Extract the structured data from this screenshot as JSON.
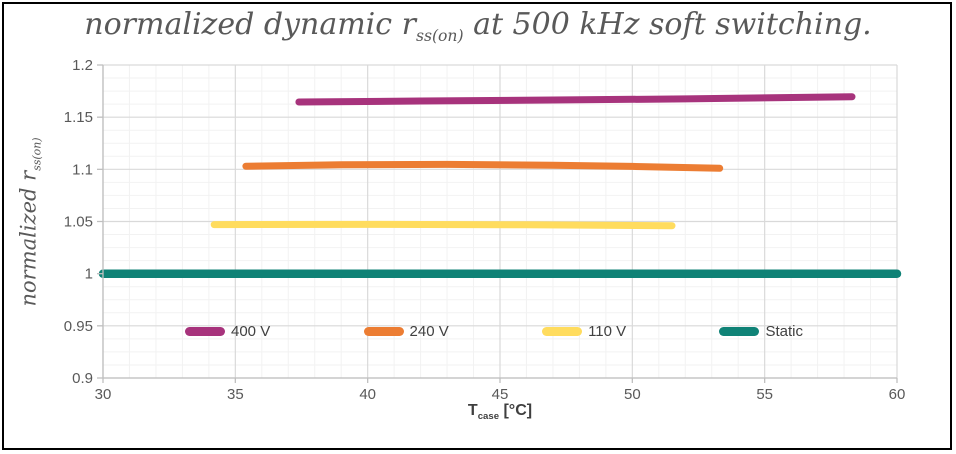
{
  "chart": {
    "title": {
      "pre": "normalized dynamic r",
      "sub": "ss(on)",
      "post": " at 500 kHz soft switching."
    },
    "x_axis_label": {
      "pre": "T",
      "sub": "case",
      "post": " [°C]"
    },
    "y_axis_label": {
      "pre": "normalized r",
      "sub": "ss(on)"
    }
  },
  "chart_data": {
    "type": "line",
    "title": "normalized dynamic r_ss(on) at 500 kHz soft switching.",
    "xlabel": "T_case [°C]",
    "ylabel": "normalized r_ss(on)",
    "xlim": [
      30,
      60
    ],
    "ylim": [
      0.9,
      1.2
    ],
    "x_ticks": [
      30,
      35,
      40,
      45,
      50,
      55,
      60
    ],
    "y_ticks": [
      0.9,
      0.95,
      1,
      1.05,
      1.1,
      1.15,
      1.2
    ],
    "x_minor_step": 1,
    "y_minor_step": 0.0125,
    "grid": true,
    "legend_position": "inside-bottom",
    "colors": {
      "grid_major": "#D9D9D9",
      "grid_minor": "#F2F2F2",
      "axis": "#BFBFBF",
      "tick_labels": "#595959"
    },
    "series": [
      {
        "name": "400 V",
        "color": "#A7337C",
        "line_width": 7,
        "points": [
          [
            37.4,
            1.1645
          ],
          [
            42,
            1.1655
          ],
          [
            47,
            1.1665
          ],
          [
            52,
            1.1675
          ],
          [
            58.3,
            1.1695
          ]
        ]
      },
      {
        "name": "240 V",
        "color": "#EC7D33",
        "line_width": 7,
        "points": [
          [
            35.4,
            1.103
          ],
          [
            39,
            1.1043
          ],
          [
            43,
            1.1047
          ],
          [
            47,
            1.104
          ],
          [
            50,
            1.1028
          ],
          [
            53.3,
            1.101
          ]
        ]
      },
      {
        "name": "110 V",
        "color": "#FFDC5E",
        "line_width": 7,
        "points": [
          [
            34.2,
            1.047
          ],
          [
            40,
            1.0472
          ],
          [
            46,
            1.0468
          ],
          [
            51.5,
            1.046
          ]
        ]
      },
      {
        "name": "Static",
        "color": "#0F8276",
        "line_width": 8.5,
        "points": [
          [
            30,
            1
          ],
          [
            60,
            1
          ]
        ]
      }
    ]
  }
}
